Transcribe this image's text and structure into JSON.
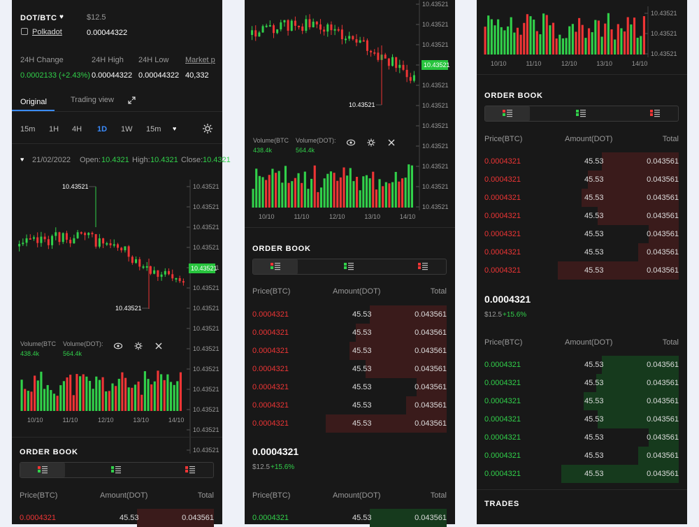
{
  "pair": {
    "symbol": "DOT/BTC",
    "name": "Polkadot",
    "usd_price": "$12.5",
    "btc_price": "0.00044322"
  },
  "stats": {
    "change_label": "24H Change",
    "change_value": "0.0002133 (+2.43%)",
    "high_label": "24H High",
    "high_value": "0.00044322",
    "low_label": "24H Low",
    "low_value": "0.00044322",
    "market_label": "Market p",
    "market_value": "40,332"
  },
  "tabs": {
    "original": "Original",
    "trading_view": "Trading view"
  },
  "timeframes": [
    "15m",
    "1H",
    "4H",
    "1D",
    "1W",
    "15m"
  ],
  "active_timeframe": "1D",
  "ohlc": {
    "date": "21/02/2022",
    "open_label": "Open:",
    "open_value": "10.4321",
    "high_label": "High:",
    "high_value": "10.4321",
    "close_label": "Close:",
    "close_value": "10.4321"
  },
  "chart": {
    "price_ticks": [
      "10.43521",
      "10.43521",
      "10.43521",
      "10.43521",
      "10.43521",
      "10.43521",
      "10.43521",
      "10.43521",
      "10.43521",
      "10.43521",
      "10.43521",
      "10.43521",
      "10.43521",
      "10.43521"
    ],
    "current_price": "10.43521",
    "max_label": "10.43521",
    "min_label": "10.43521",
    "dates": [
      "10/10",
      "11/10",
      "12/10",
      "13/10",
      "14/10"
    ],
    "volume_label": "Volume(BTC",
    "volume_value": "438.4k",
    "volume_dot_label": "Volume(DOT):",
    "volume_dot_value": "564.4k"
  },
  "orderbook": {
    "title": "ORDER BOOK",
    "headers": {
      "price": "Price(BTC)",
      "amount": "Amount(DOT)",
      "total": "Total"
    },
    "asks": [
      {
        "price": "0.0004321",
        "amount": "45.53",
        "total": "0.043561",
        "depth": 0.38
      },
      {
        "price": "0.0004321",
        "amount": "45.53",
        "total": "0.043561",
        "depth": 0.45
      },
      {
        "price": "0.0004321",
        "amount": "45.53",
        "total": "0.043561",
        "depth": 0.48
      },
      {
        "price": "0.0004321",
        "amount": "45.53",
        "total": "0.043561",
        "depth": 0.4
      },
      {
        "price": "0.0004321",
        "amount": "45.53",
        "total": "0.043561",
        "depth": 0.15
      },
      {
        "price": "0.0004321",
        "amount": "45.53",
        "total": "0.043561",
        "depth": 0.2
      },
      {
        "price": "0.0004321",
        "amount": "45.53",
        "total": "0.043561",
        "depth": 0.6
      }
    ],
    "mid_price": "0.0004321",
    "mid_usd": "$12.5",
    "mid_change": "+15.6%",
    "bids": [
      {
        "price": "0.0004321",
        "amount": "45.53",
        "total": "0.043561",
        "depth": 0.38
      },
      {
        "price": "0.0004321",
        "amount": "45.53",
        "total": "0.043561",
        "depth": 0.41
      },
      {
        "price": "0.0004321",
        "amount": "45.53",
        "total": "0.043561",
        "depth": 0.47
      },
      {
        "price": "0.0004321",
        "amount": "45.53",
        "total": "0.043561",
        "depth": 0.4
      },
      {
        "price": "0.0004321",
        "amount": "45.53",
        "total": "0.043561",
        "depth": 0.15
      },
      {
        "price": "0.0004321",
        "amount": "45.53",
        "total": "0.043561",
        "depth": 0.2
      },
      {
        "price": "0.0004321",
        "amount": "45.53",
        "total": "0.043561",
        "depth": 0.58
      }
    ]
  },
  "trades": {
    "title": "TRADES"
  },
  "colors": {
    "green": "#31d04a",
    "red": "#ee3535",
    "panel": "#181818",
    "blue": "#3b8cff"
  }
}
